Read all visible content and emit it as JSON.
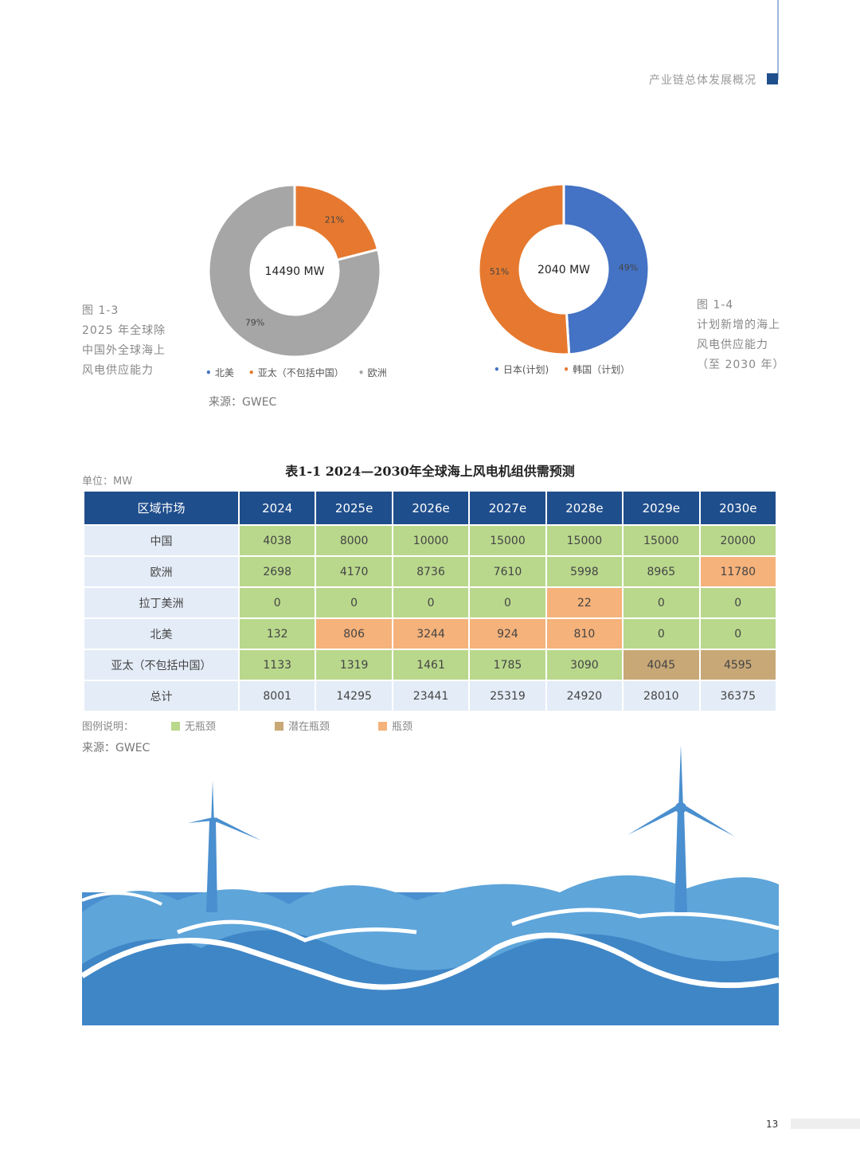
{
  "header": {
    "section_title": "产业链总体发展概况"
  },
  "fig13": {
    "caption": [
      "图 1-3",
      "2025 年全球除",
      "中国外全球海上",
      "风电供应能力"
    ],
    "chart_data": {
      "type": "pie",
      "title": "",
      "center_label": "14490 MW",
      "slices": [
        {
          "name": "北美",
          "value": 0,
          "label": "0%",
          "color": "#4472c4"
        },
        {
          "name": "亚太（不包括中国）",
          "value": 21,
          "label": "21%",
          "color": "#e6792f"
        },
        {
          "name": "欧洲",
          "value": 79,
          "label": "79%",
          "color": "#a6a6a6"
        }
      ]
    },
    "source": "来源：GWEC"
  },
  "fig14": {
    "caption": [
      "图 1-4",
      "计划新增的海上",
      "风电供应能力",
      "（至 2030 年）"
    ],
    "chart_data": {
      "type": "pie",
      "title": "",
      "center_label": "2040 MW",
      "slices": [
        {
          "name": "日本(计划)",
          "value": 49,
          "label": "49%",
          "color": "#4472c4"
        },
        {
          "name": "韩国（计划）",
          "value": 51,
          "label": "51%",
          "color": "#e6792f"
        }
      ]
    }
  },
  "table": {
    "title": "表1-1 2024—2030年全球海上风电机组供需预测",
    "unit": "单位：MW",
    "headers": [
      "区域市场",
      "2024",
      "2025e",
      "2026e",
      "2027e",
      "2028e",
      "2029e",
      "2030e"
    ],
    "rows": [
      {
        "region": "中国",
        "values": [
          "4038",
          "8000",
          "10000",
          "15000",
          "15000",
          "15000",
          "20000"
        ],
        "status": [
          "g",
          "g",
          "g",
          "g",
          "g",
          "g",
          "g"
        ]
      },
      {
        "region": "欧洲",
        "values": [
          "2698",
          "4170",
          "8736",
          "7610",
          "5998",
          "8965",
          "11780"
        ],
        "status": [
          "g",
          "g",
          "g",
          "g",
          "g",
          "g",
          "o"
        ]
      },
      {
        "region": "拉丁美洲",
        "values": [
          "0",
          "0",
          "0",
          "0",
          "22",
          "0",
          "0"
        ],
        "status": [
          "g",
          "g",
          "g",
          "g",
          "o",
          "g",
          "g"
        ]
      },
      {
        "region": "北美",
        "values": [
          "132",
          "806",
          "3244",
          "924",
          "810",
          "0",
          "0"
        ],
        "status": [
          "g",
          "o",
          "o",
          "o",
          "o",
          "g",
          "g"
        ]
      },
      {
        "region": "亚太（不包括中国）",
        "values": [
          "1133",
          "1319",
          "1461",
          "1785",
          "3090",
          "4045",
          "4595"
        ],
        "status": [
          "g",
          "g",
          "g",
          "g",
          "g",
          "t",
          "t"
        ]
      },
      {
        "region": "总计",
        "values": [
          "8001",
          "14295",
          "23441",
          "25319",
          "24920",
          "28010",
          "36375"
        ],
        "status": [
          "n",
          "n",
          "n",
          "n",
          "n",
          "n",
          "n"
        ]
      }
    ],
    "legend_label": "图例说明：",
    "legend": [
      {
        "label": "无瓶颈",
        "color": "#b9d88c"
      },
      {
        "label": "潜在瓶颈",
        "color": "#c8a877"
      },
      {
        "label": "瓶颈",
        "color": "#f5b27b"
      }
    ],
    "source": "来源：GWEC"
  },
  "page_number": "13"
}
